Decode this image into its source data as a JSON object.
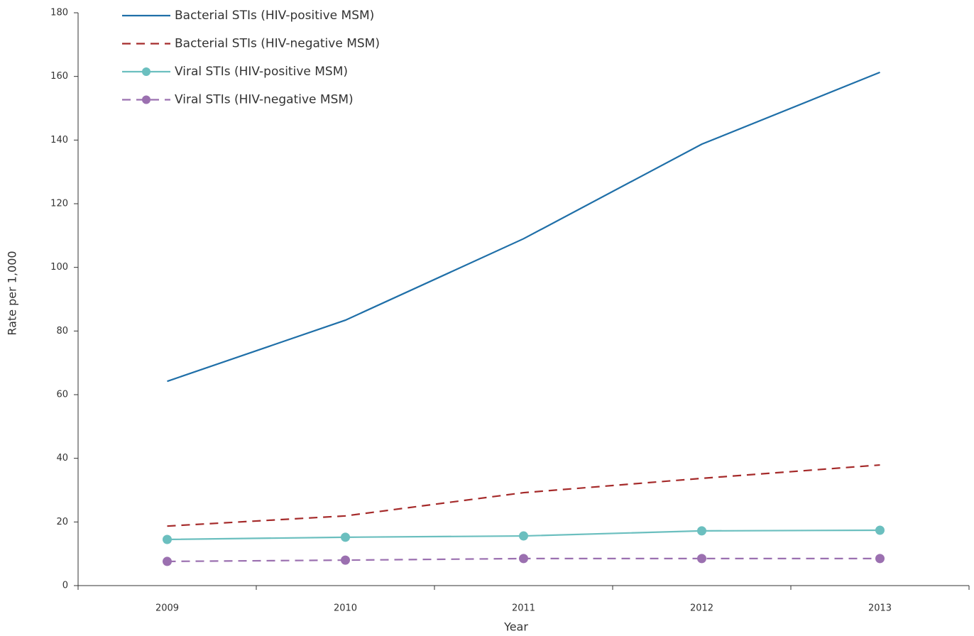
{
  "chart_data": {
    "type": "line",
    "x_label": "Year",
    "y_label": "Rate per 1,000",
    "categories": [
      "2009",
      "2010",
      "2011",
      "2012",
      "2013"
    ],
    "ylim": [
      0,
      180
    ],
    "yticks": [
      0,
      20,
      40,
      60,
      80,
      100,
      120,
      140,
      160,
      180
    ],
    "legend": "top-left",
    "series": [
      {
        "name": "Bacterial STIs (HIV-positive MSM)",
        "color": "#1f6fa8",
        "dashed": false,
        "markers": false,
        "values": [
          64.2,
          83.4,
          109,
          138.7,
          161.3
        ]
      },
      {
        "name": "Bacterial STIs (HIV-negative MSM)",
        "color": "#a52a2a",
        "dashed": true,
        "markers": false,
        "values": [
          18.7,
          21.9,
          29.2,
          33.7,
          37.9
        ]
      },
      {
        "name": "Viral STIs (HIV-positive MSM)",
        "color": "#6bbfbf",
        "dashed": false,
        "markers": true,
        "values": [
          14.5,
          15.2,
          15.6,
          17.2,
          17.4
        ]
      },
      {
        "name": "Viral STIs (HIV-negative MSM)",
        "color": "#9b70b0",
        "dashed": true,
        "markers": true,
        "values": [
          7.6,
          8.0,
          8.5,
          8.5,
          8.5
        ]
      }
    ]
  }
}
